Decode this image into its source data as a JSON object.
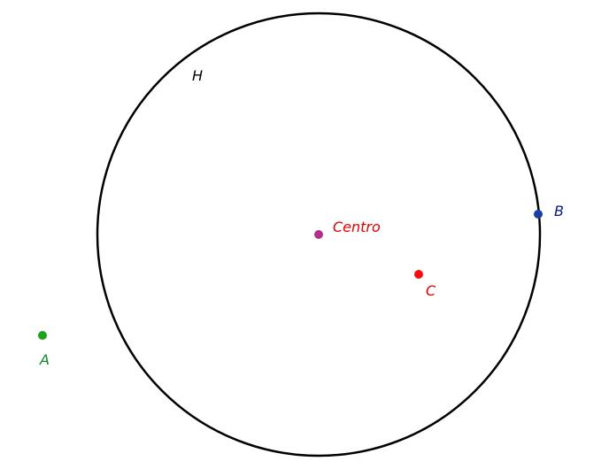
{
  "figure": {
    "circle": {
      "label": "H",
      "color": "#000000"
    },
    "points": [
      {
        "id": "centro",
        "label": "Centro",
        "point_color": "#b0308a",
        "label_color": "#e00000"
      },
      {
        "id": "b",
        "label": "B",
        "point_color": "#1a3fa0",
        "label_color": "#0a1a78"
      },
      {
        "id": "c",
        "label": "C",
        "point_color": "#f01010",
        "label_color": "#e00000"
      },
      {
        "id": "a",
        "label": "A",
        "point_color": "#1fa01f",
        "label_color": "#0a8a2a"
      }
    ]
  }
}
